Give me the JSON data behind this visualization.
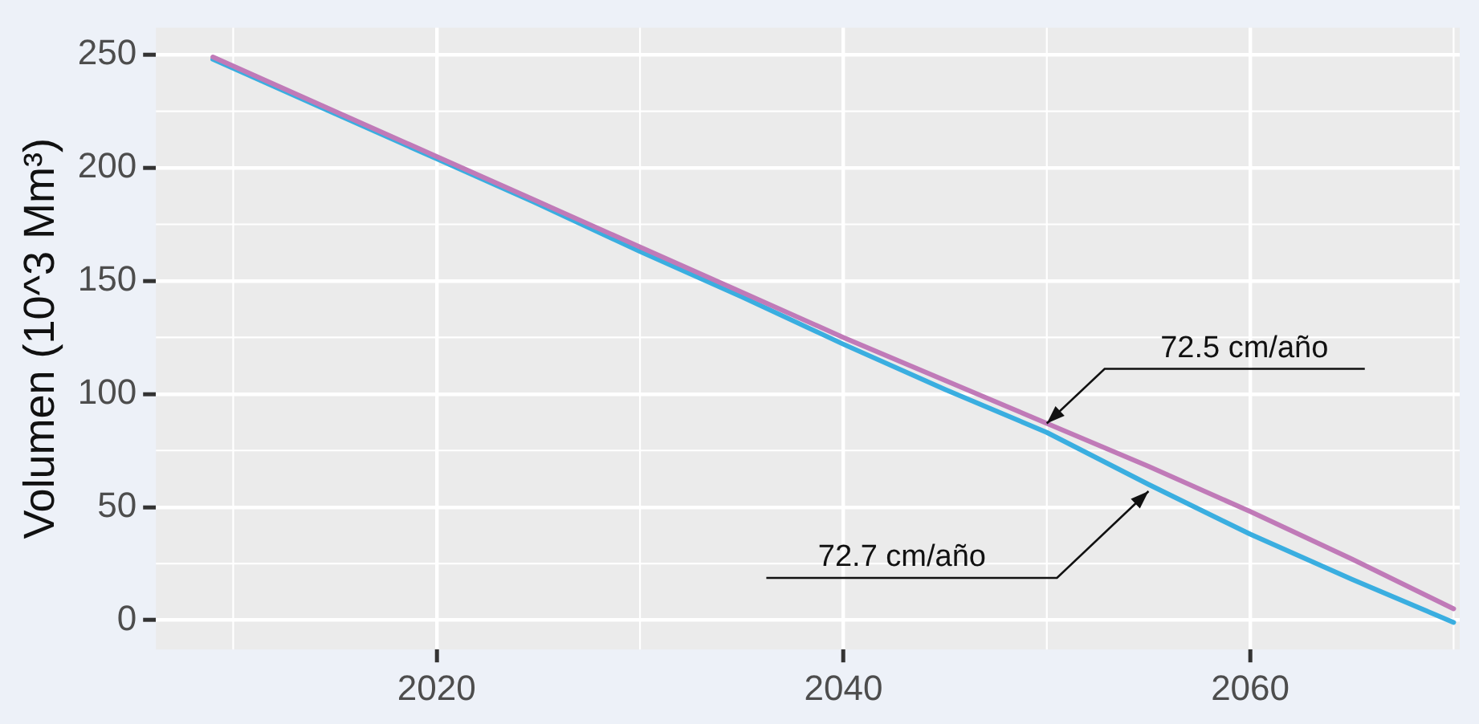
{
  "chart_data": {
    "type": "line",
    "ylabel": "Volumen (10^3 Mm³)",
    "x": [
      2009,
      2015,
      2020,
      2025,
      2030,
      2035,
      2040,
      2045,
      2050,
      2055,
      2060,
      2065,
      2070
    ],
    "series": [
      {
        "color": "#3aaee0",
        "values": [
          248,
          224,
          204,
          184,
          163,
          143,
          122,
          102,
          83,
          60,
          38,
          18,
          -1
        ]
      },
      {
        "color": "#c07ab8",
        "values": [
          249,
          225,
          205,
          185,
          165,
          145,
          125,
          106,
          87,
          68,
          48,
          27,
          5
        ]
      }
    ],
    "xlim": [
      2006.2,
      2070.3
    ],
    "xticks": [
      2020,
      2040,
      2060
    ],
    "ylim": [
      -13,
      262
    ],
    "yticks": [
      0,
      50,
      100,
      150,
      200,
      250
    ],
    "grid": true,
    "legend": false,
    "marker": "none",
    "line_style": "solid",
    "annotations": [
      {
        "text": "72.5 cm/año",
        "x": 2050,
        "y": 87
      },
      {
        "text": "72.7 cm/año",
        "x": 2055,
        "y": 57
      }
    ]
  }
}
